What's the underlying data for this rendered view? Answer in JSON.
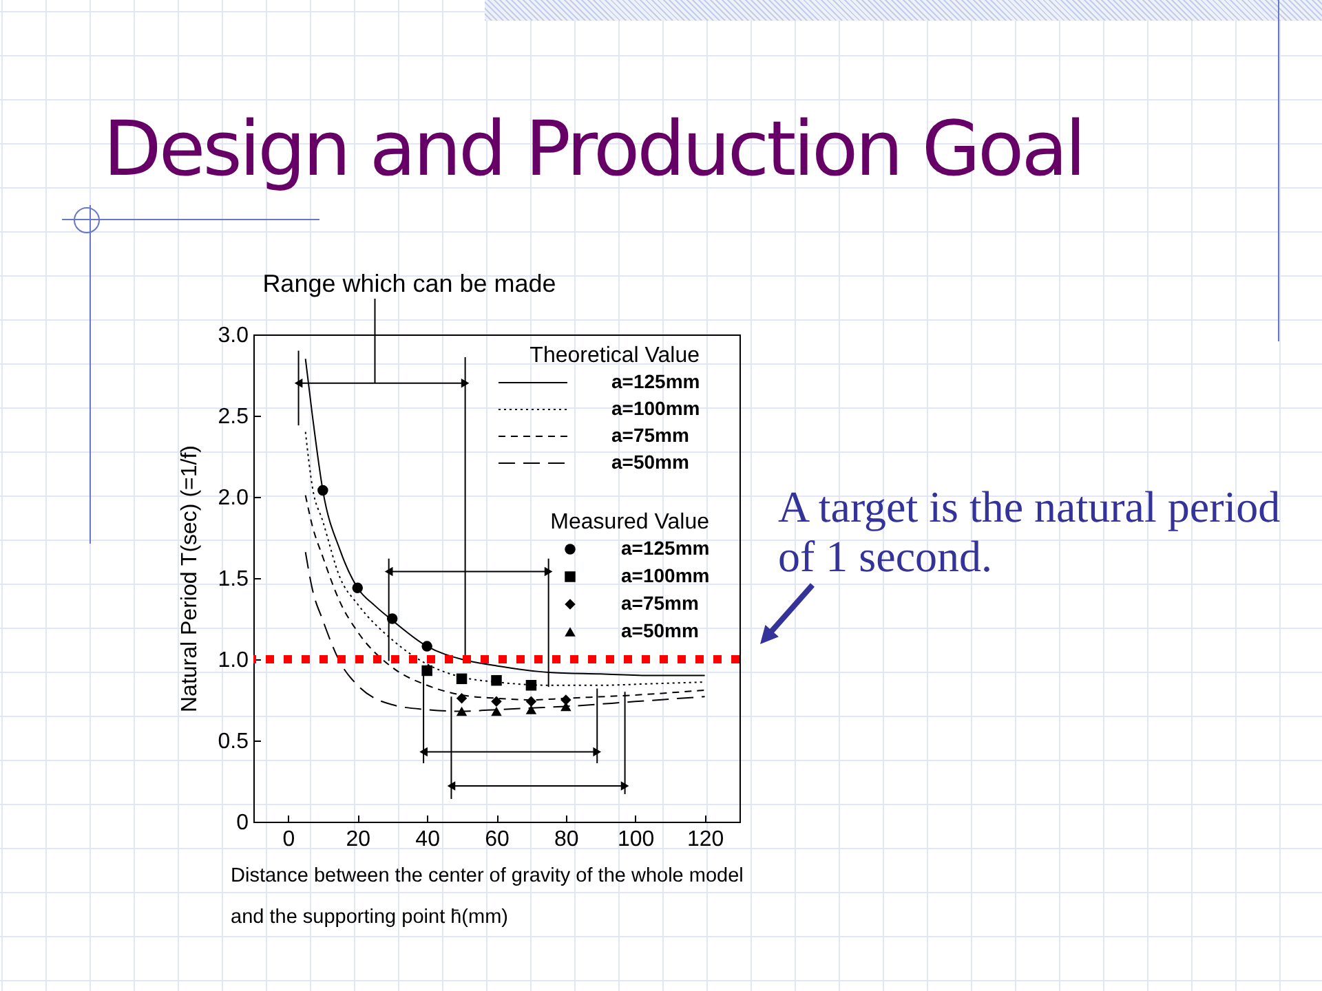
{
  "chart_data": {
    "type": "line",
    "title": "Design and Production Goal",
    "xlabel": "Distance between the center of gravity of the whole model and the supporting point h̄(mm)",
    "ylabel": "Natural Period T(sec) (=1/f)",
    "legend_title": [
      "Theoretical Value",
      "Measured Value"
    ],
    "legend": "top right",
    "xlim": [
      -10,
      130
    ],
    "ylim": [
      0,
      3
    ],
    "xticks": [
      0,
      20,
      40,
      60,
      80,
      100,
      120
    ],
    "yticks": [
      0,
      0.5,
      {
        "value": 1,
        "label": "1.0"
      },
      1.5,
      {
        "value": 2,
        "label": "2.0"
      },
      2.5,
      {
        "value": 3,
        "label": "3.0"
      }
    ],
    "annotations": [
      {
        "text": "Range which can be made",
        "x": 25,
        "y": 2.7
      }
    ],
    "ref_lines": [
      {
        "axis": "y",
        "value": 1,
        "label": "A target is the natural period of 1 second.",
        "color": "#ff0000",
        "line_style": "dotted"
      }
    ],
    "series": [
      {
        "name": "a=125mm",
        "line_style": "solid",
        "color": "#000000",
        "x": [
          5,
          7,
          10,
          15,
          20,
          25,
          30,
          40,
          50,
          60,
          75,
          90,
          105,
          120
        ],
        "values": [
          2.85,
          2.5,
          2.04,
          1.67,
          1.44,
          1.33,
          1.24,
          1.08,
          1.0,
          0.96,
          0.92,
          0.91,
          0.9,
          0.9
        ]
      },
      {
        "name": "a=100mm",
        "line_style": "dotted",
        "color": "#000000",
        "x": [
          5,
          7,
          10,
          15,
          20,
          30,
          40,
          50,
          60,
          75,
          90,
          105,
          120
        ],
        "values": [
          2.4,
          2.06,
          1.85,
          1.5,
          1.34,
          1.12,
          0.97,
          0.89,
          0.86,
          0.84,
          0.84,
          0.85,
          0.86
        ]
      },
      {
        "name": "a=75mm",
        "line_style": "dashed",
        "color": "#000000",
        "x": [
          5,
          7,
          10,
          15,
          20,
          30,
          40,
          50,
          60,
          70,
          80,
          100,
          120
        ],
        "values": [
          2.01,
          1.82,
          1.63,
          1.35,
          1.17,
          0.95,
          0.84,
          0.78,
          0.76,
          0.75,
          0.76,
          0.78,
          0.81
        ]
      },
      {
        "name": "a=50mm",
        "line_style": "longdash",
        "color": "#000000",
        "x": [
          5,
          7,
          10,
          15,
          20,
          30,
          40,
          50,
          60,
          70,
          80,
          100,
          120
        ],
        "values": [
          1.66,
          1.43,
          1.24,
          0.98,
          0.84,
          0.72,
          0.69,
          0.68,
          0.69,
          0.7,
          0.71,
          0.74,
          0.77
        ]
      },
      {
        "name": "a=125mm",
        "type": "scatter",
        "marker": "circle",
        "color": "#000000",
        "x": [
          10,
          20,
          30,
          40
        ],
        "values": [
          2.04,
          1.44,
          1.25,
          1.08
        ]
      },
      {
        "name": "a=100mm",
        "type": "scatter",
        "marker": "square",
        "color": "#000000",
        "x": [
          40,
          50,
          60,
          70
        ],
        "values": [
          0.93,
          0.88,
          0.87,
          0.84
        ]
      },
      {
        "name": "a=75mm",
        "type": "scatter",
        "marker": "diamond",
        "color": "#000000",
        "x": [
          50,
          60,
          70,
          80
        ],
        "values": [
          0.76,
          0.74,
          0.74,
          0.75
        ]
      },
      {
        "name": "a=50mm",
        "type": "scatter",
        "marker": "triangle",
        "color": "#000000",
        "x": [
          50,
          60,
          70,
          80
        ],
        "values": [
          0.68,
          0.68,
          0.69,
          0.71
        ]
      },
      {
        "line_style": "solid",
        "marker": "triangle",
        "color": "#000000",
        "x": [
          3,
          51
        ],
        "values": [
          2.7,
          2.7
        ],
        "errors": [
          [
            2.44,
            2.9
          ],
          [
            1.0,
            2.86
          ]
        ]
      },
      {
        "line_style": "solid",
        "marker": "triangle",
        "color": "#000000",
        "x": [
          29,
          75
        ],
        "values": [
          1.54,
          1.54
        ],
        "errors": [
          [
            0.99,
            1.62
          ],
          [
            0.83,
            1.62
          ]
        ]
      },
      {
        "line_style": "solid",
        "marker": "triangle",
        "color": "#000000",
        "x": [
          39,
          89
        ],
        "values": [
          0.43,
          0.43
        ],
        "errors": [
          [
            0.36,
            0.92
          ],
          [
            0.36,
            0.82
          ]
        ]
      },
      {
        "line_style": "solid",
        "marker": "triangle",
        "color": "#000000",
        "x": [
          47,
          97
        ],
        "values": [
          0.22,
          0.22
        ],
        "errors": [
          [
            0.14,
            0.77
          ],
          [
            0.17,
            0.8
          ]
        ]
      }
    ]
  }
}
